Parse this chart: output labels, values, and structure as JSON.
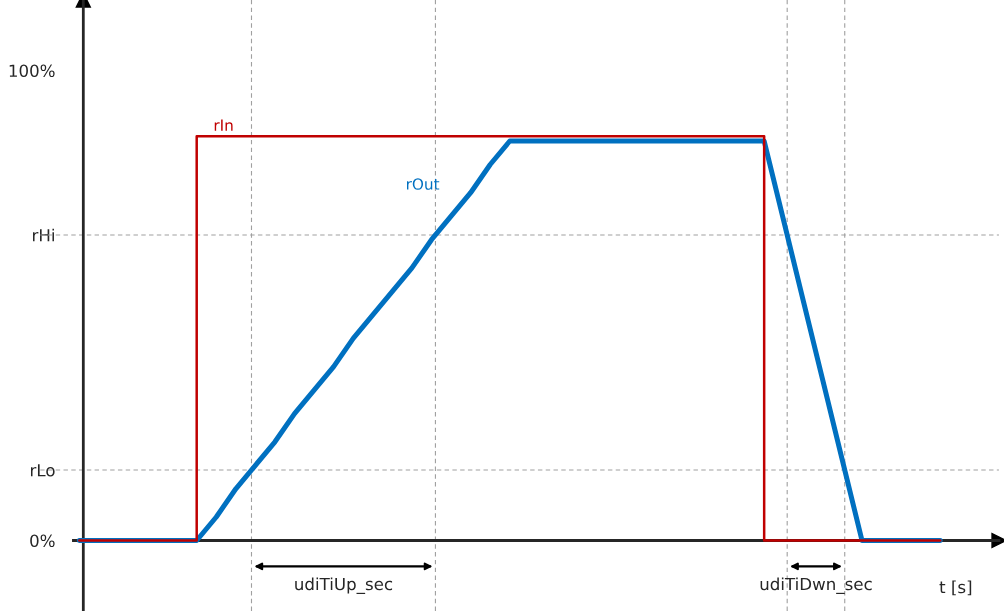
{
  "chart_data": {
    "type": "line",
    "xlabel": "t [s]",
    "ylim": [
      -15,
      115
    ],
    "categories": [
      null,
      null,
      null,
      null,
      null,
      null,
      null,
      null,
      null,
      null,
      null,
      null,
      null,
      null,
      null,
      null,
      null,
      null,
      null,
      null,
      null,
      null,
      null,
      null,
      null,
      null,
      null,
      null,
      null,
      null,
      null,
      null,
      null,
      null,
      null,
      null,
      null,
      null,
      null,
      null,
      null,
      null,
      null,
      null,
      null
    ],
    "yticks": [
      {
        "value": 0,
        "label": "0%"
      },
      {
        "value": 15,
        "label": "rLo"
      },
      {
        "value": 65,
        "label": "rHi"
      },
      {
        "value": 100,
        "label": "100%"
      }
    ],
    "grid": false,
    "legend": false,
    "line_style": "solid",
    "series": [
      {
        "name": "rIn",
        "type": "step",
        "color": "#c00000",
        "values": [
          0,
          0,
          0,
          0,
          0,
          0,
          86,
          86,
          86,
          86,
          86,
          86,
          86,
          86,
          86,
          86,
          86,
          86,
          86,
          86,
          86,
          86,
          86,
          86,
          86,
          86,
          86,
          86,
          86,
          86,
          86,
          86,
          86,
          86,
          86,
          0,
          0,
          0,
          0,
          0,
          0,
          0,
          0,
          0,
          0
        ]
      },
      {
        "name": "rOut",
        "color": "#0070c0",
        "values": [
          0,
          0,
          0,
          0,
          0,
          0,
          0,
          5,
          11,
          16,
          21,
          27,
          32,
          37,
          43,
          48,
          53,
          58,
          64,
          69,
          74,
          80,
          85,
          85,
          85,
          85,
          85,
          85,
          85,
          85,
          85,
          85,
          85,
          85,
          85,
          85,
          68,
          51,
          34,
          17,
          0,
          0,
          0,
          0,
          0
        ]
      }
    ],
    "ref_lines": [
      {
        "axis": "y",
        "value": 15,
        "color": "#a0a0a0",
        "line_style": "dashed"
      },
      {
        "axis": "y",
        "value": 65,
        "color": "#a0a0a0",
        "line_style": "dashed"
      }
    ],
    "annotations": [
      "udiTiUp_sec",
      "udiTiDwn_sec"
    ]
  }
}
